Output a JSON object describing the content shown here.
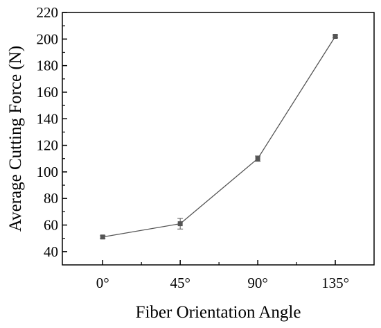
{
  "chart_data": {
    "type": "line",
    "categories": [
      "0°",
      "45°",
      "90°",
      "135°"
    ],
    "series": [
      {
        "values": [
          51,
          61,
          110,
          202
        ],
        "error": [
          1,
          4,
          2,
          1
        ]
      }
    ],
    "xlabel": "Fiber Orientation Angle",
    "ylabel": "Average Cutting Force (N)",
    "ylim": [
      30,
      220
    ],
    "yticks": [
      40,
      60,
      80,
      100,
      120,
      140,
      160,
      180,
      200,
      220
    ],
    "grid": false,
    "line_color": "#555555",
    "marker": "square"
  }
}
